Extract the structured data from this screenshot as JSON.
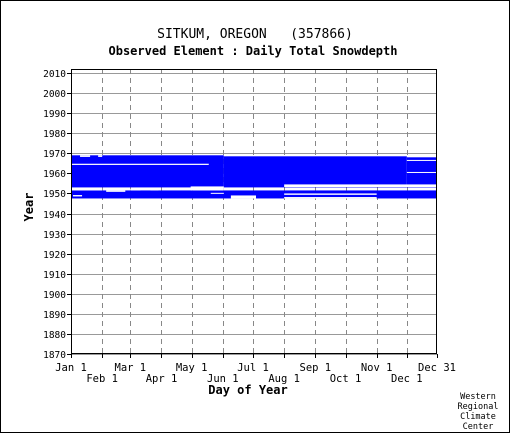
{
  "chart_data": {
    "type": "bar",
    "title": "SITKUM, OREGON   (357866)",
    "subtitle": "Observed Element : Daily Total Snowdepth",
    "xlabel": "Day of Year",
    "ylabel": "Year",
    "xlim": [
      1,
      365
    ],
    "ylim": [
      1870,
      2012
    ],
    "yticks": [
      1870,
      1880,
      1890,
      1900,
      1910,
      1920,
      1930,
      1940,
      1950,
      1960,
      1970,
      1980,
      1990,
      2000,
      2010
    ],
    "xticks_top": [
      {
        "label": "Jan 1",
        "day": 1
      },
      {
        "label": "Mar 1",
        "day": 60
      },
      {
        "label": "May 1",
        "day": 121
      },
      {
        "label": "Jul 1",
        "day": 182
      },
      {
        "label": "Sep 1",
        "day": 244
      },
      {
        "label": "Nov 1",
        "day": 305
      },
      {
        "label": "Dec 31",
        "day": 365
      }
    ],
    "xticks_bottom": [
      {
        "label": "Feb 1",
        "day": 32
      },
      {
        "label": "Apr 1",
        "day": 91
      },
      {
        "label": "Jun 1",
        "day": 152
      },
      {
        "label": "Aug 1",
        "day": 213
      },
      {
        "label": "Oct 1",
        "day": 274
      },
      {
        "label": "Dec 1",
        "day": 335
      }
    ],
    "grid": true,
    "color": "#0000ff",
    "coverage": [
      {
        "y0": 1947.5,
        "y1": 1951.5,
        "d0": 1,
        "d1": 365
      },
      {
        "y0": 1953,
        "y1": 1969,
        "d0": 1,
        "d1": 153
      },
      {
        "y0": 1953,
        "y1": 1968.5,
        "d0": 153,
        "d1": 335
      },
      {
        "y0": 1953,
        "y1": 1968,
        "d0": 335,
        "d1": 365
      }
    ],
    "gaps": [
      {
        "y0": 1951.5,
        "y1": 1952.5,
        "d0": 1,
        "d1": 32
      },
      {
        "y0": 1951.5,
        "y1": 1953.5,
        "d0": 120,
        "d1": 153
      },
      {
        "y0": 1953.2,
        "y1": 1954.5,
        "d0": 213,
        "d1": 365
      },
      {
        "y0": 1964.2,
        "y1": 1964.8,
        "d0": 1,
        "d1": 138
      },
      {
        "y0": 1966.2,
        "y1": 1966.7,
        "d0": 335,
        "d1": 365
      },
      {
        "y0": 1960.2,
        "y1": 1960.7,
        "d0": 335,
        "d1": 365
      },
      {
        "y0": 1968.2,
        "y1": 1969,
        "d0": 10,
        "d1": 20
      },
      {
        "y0": 1968.2,
        "y1": 1969,
        "d0": 28,
        "d1": 32
      },
      {
        "y0": 1949.8,
        "y1": 1950.3,
        "d0": 140,
        "d1": 153
      },
      {
        "y0": 1948.5,
        "y1": 1949.2,
        "d0": 3,
        "d1": 12
      },
      {
        "y0": 1950.8,
        "y1": 1951.5,
        "d0": 36,
        "d1": 55
      },
      {
        "y0": 1951.5,
        "y1": 1952.3,
        "d0": 60,
        "d1": 70
      },
      {
        "y0": 1951.5,
        "y1": 1952.3,
        "d0": 80,
        "d1": 88
      },
      {
        "y0": 1949.3,
        "y1": 1950.0,
        "d0": 213,
        "d1": 305
      },
      {
        "y0": 1947.5,
        "y1": 1948.2,
        "d0": 213,
        "d1": 305
      },
      {
        "y0": 1947.5,
        "y1": 1949.0,
        "d0": 160,
        "d1": 185
      }
    ]
  },
  "credit": [
    "Western",
    "Regional",
    "Climate",
    "Center"
  ]
}
